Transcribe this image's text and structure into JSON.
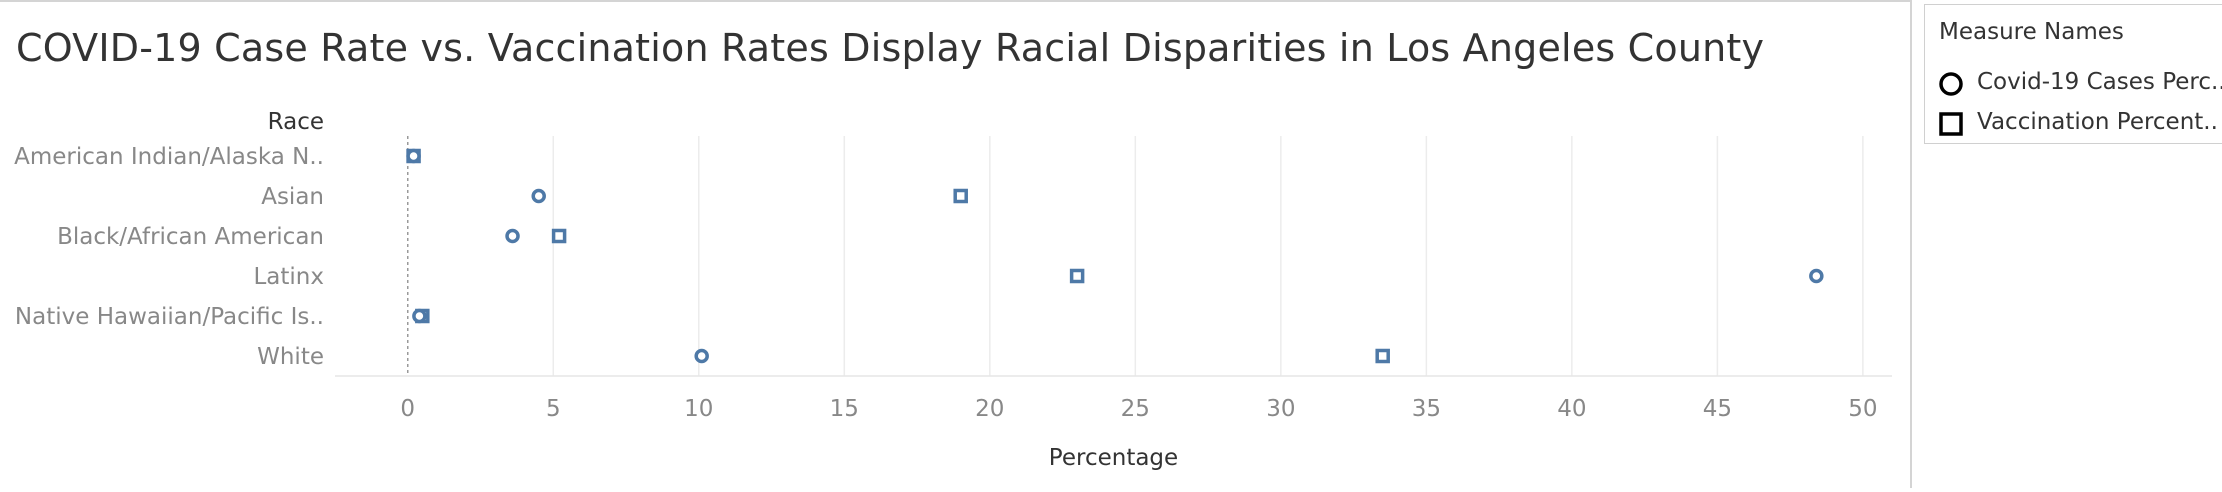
{
  "chart_data": {
    "type": "scatter",
    "title": "COVID-19 Case Rate vs. Vaccination Rates Display Racial Disparities in Los Angeles County",
    "xlabel": "Percentage",
    "ylabel": "Race",
    "xlim": [
      -2.5,
      51
    ],
    "xticks": [
      0,
      5,
      10,
      15,
      20,
      25,
      30,
      35,
      40,
      45,
      50
    ],
    "categories": [
      "American Indian/Alaska N..",
      "Asian",
      "Black/African American",
      "Latinx",
      "Native Hawaiian/Pacific Is..",
      "White"
    ],
    "series": [
      {
        "name": "Covid-19 Cases Perc..",
        "marker": "circle",
        "color": "#4e79a7",
        "values": [
          0.2,
          4.5,
          3.6,
          48.4,
          0.4,
          10.1
        ]
      },
      {
        "name": "Vaccination Percent..",
        "marker": "square",
        "color": "#4e79a7",
        "values": [
          0.2,
          19.0,
          5.2,
          23.0,
          0.5,
          33.5
        ]
      }
    ],
    "grid": true,
    "legend_position": "right"
  },
  "legend": {
    "title": "Measure Names"
  }
}
